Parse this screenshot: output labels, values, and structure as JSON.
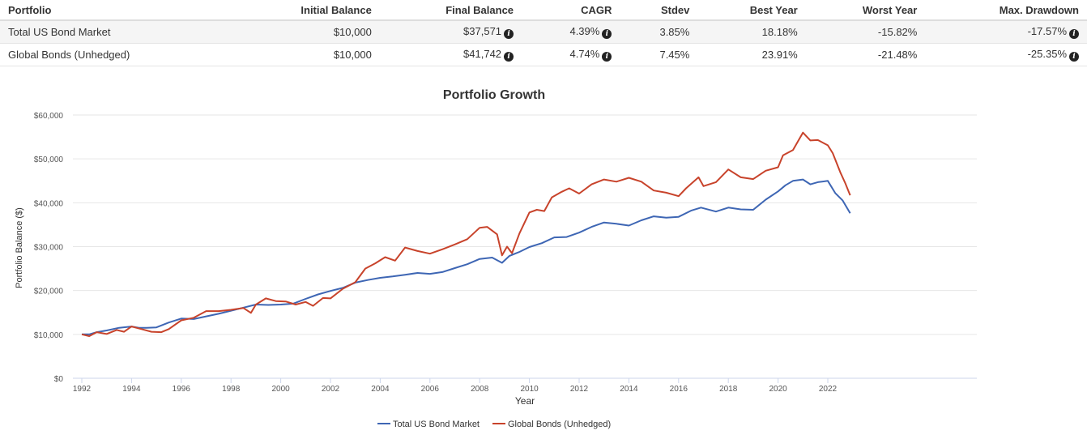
{
  "table": {
    "headers": [
      "Portfolio",
      "Initial Balance",
      "Final Balance",
      "CAGR",
      "Stdev",
      "Best Year",
      "Worst Year",
      "Max. Drawdown"
    ],
    "rows": [
      {
        "portfolio": "Total US Bond Market",
        "initial_balance": "$10,000",
        "final_balance": "$37,571",
        "cagr": "4.39%",
        "stdev": "3.85%",
        "best_year": "18.18%",
        "worst_year": "-15.82%",
        "max_drawdown": "-17.57%"
      },
      {
        "portfolio": "Global Bonds (Unhedged)",
        "initial_balance": "$10,000",
        "final_balance": "$41,742",
        "cagr": "4.74%",
        "stdev": "7.45%",
        "best_year": "23.91%",
        "worst_year": "-21.48%",
        "max_drawdown": "-25.35%"
      }
    ],
    "info_icon": "info-circle-icon"
  },
  "chart_data": {
    "type": "line",
    "title": "Portfolio Growth",
    "xlabel": "Year",
    "ylabel": "Portfolio Balance ($)",
    "xlim": [
      1992,
      2022.9
    ],
    "ylim": [
      0,
      60000
    ],
    "x_ticks": [
      1992,
      1994,
      1996,
      1998,
      2000,
      2002,
      2004,
      2006,
      2008,
      2010,
      2012,
      2014,
      2016,
      2018,
      2020,
      2022
    ],
    "y_ticks": [
      0,
      10000,
      20000,
      30000,
      40000,
      50000,
      60000
    ],
    "y_tick_labels": [
      "$0",
      "$10,000",
      "$20,000",
      "$30,000",
      "$40,000",
      "$50,000",
      "$60,000"
    ],
    "grid": true,
    "legend_position": "bottom-center",
    "series": [
      {
        "name": "Total US Bond Market",
        "color": "#3e66b4",
        "x": [
          1992.0,
          1992.3,
          1992.6,
          1993.0,
          1993.5,
          1994.0,
          1994.3,
          1994.6,
          1995.0,
          1995.5,
          1996.0,
          1996.5,
          1997.0,
          1997.5,
          1998.0,
          1998.5,
          1999.0,
          1999.5,
          2000.0,
          2000.5,
          2001.0,
          2001.5,
          2002.0,
          2002.5,
          2003.0,
          2003.5,
          2004.0,
          2004.5,
          2005.0,
          2005.5,
          2006.0,
          2006.5,
          2007.0,
          2007.5,
          2008.0,
          2008.5,
          2008.9,
          2009.2,
          2009.6,
          2010.0,
          2010.5,
          2011.0,
          2011.5,
          2012.0,
          2012.5,
          2013.0,
          2013.5,
          2014.0,
          2014.5,
          2015.0,
          2015.5,
          2016.0,
          2016.5,
          2016.9,
          2017.5,
          2018.0,
          2018.5,
          2019.0,
          2019.5,
          2020.0,
          2020.3,
          2020.6,
          2021.0,
          2021.3,
          2021.6,
          2022.0,
          2022.3,
          2022.6,
          2022.9
        ],
        "values": [
          10000,
          10000,
          10500,
          10900,
          11500,
          11800,
          11500,
          11500,
          11600,
          12700,
          13600,
          13500,
          14100,
          14700,
          15400,
          16100,
          16800,
          16700,
          16800,
          17000,
          18100,
          19100,
          19900,
          20600,
          21800,
          22400,
          22900,
          23200,
          23600,
          24000,
          23800,
          24200,
          25100,
          26000,
          27200,
          27500,
          26300,
          27900,
          28800,
          29900,
          30800,
          32100,
          32200,
          33200,
          34500,
          35500,
          35200,
          34800,
          36000,
          36900,
          36600,
          36800,
          38200,
          38900,
          38000,
          38900,
          38500,
          38400,
          40700,
          42600,
          44000,
          45000,
          45300,
          44200,
          44700,
          45000,
          42200,
          40500,
          37600
        ]
      },
      {
        "name": "Global Bonds (Unhedged)",
        "color": "#c8432b",
        "x": [
          1992.0,
          1992.3,
          1992.6,
          1993.0,
          1993.4,
          1993.7,
          1994.0,
          1994.4,
          1994.8,
          1995.2,
          1995.5,
          1996.0,
          1996.5,
          1997.0,
          1997.5,
          1998.0,
          1998.5,
          1998.8,
          1999.0,
          1999.4,
          1999.8,
          2000.2,
          2000.6,
          2001.0,
          2001.3,
          2001.7,
          2002.0,
          2002.5,
          2003.0,
          2003.4,
          2003.8,
          2004.2,
          2004.6,
          2005.0,
          2005.5,
          2006.0,
          2006.5,
          2007.0,
          2007.5,
          2008.0,
          2008.3,
          2008.7,
          2008.9,
          2009.1,
          2009.3,
          2009.6,
          2010.0,
          2010.3,
          2010.6,
          2010.9,
          2011.3,
          2011.6,
          2012.0,
          2012.5,
          2013.0,
          2013.5,
          2014.0,
          2014.5,
          2015.0,
          2015.5,
          2016.0,
          2016.3,
          2016.8,
          2017.0,
          2017.5,
          2018.0,
          2018.5,
          2019.0,
          2019.5,
          2020.0,
          2020.2,
          2020.6,
          2021.0,
          2021.3,
          2021.6,
          2022.0,
          2022.2,
          2022.5,
          2022.7,
          2022.9
        ],
        "values": [
          10000,
          9600,
          10500,
          10100,
          11000,
          10600,
          11800,
          11200,
          10600,
          10500,
          11200,
          13200,
          13800,
          15300,
          15300,
          15600,
          16000,
          14900,
          16800,
          18200,
          17600,
          17500,
          16800,
          17400,
          16500,
          18300,
          18200,
          20400,
          21900,
          25000,
          26200,
          27600,
          26800,
          29800,
          29000,
          28400,
          29400,
          30500,
          31700,
          34300,
          34500,
          32800,
          28000,
          30000,
          28500,
          33000,
          37800,
          38400,
          38100,
          41200,
          42500,
          43300,
          42100,
          44200,
          45300,
          44800,
          45700,
          44800,
          42800,
          42300,
          41500,
          43300,
          45800,
          43800,
          44700,
          47600,
          45800,
          45400,
          47300,
          48100,
          50800,
          52000,
          56000,
          54200,
          54300,
          53100,
          51300,
          47000,
          44500,
          41700
        ]
      }
    ]
  }
}
